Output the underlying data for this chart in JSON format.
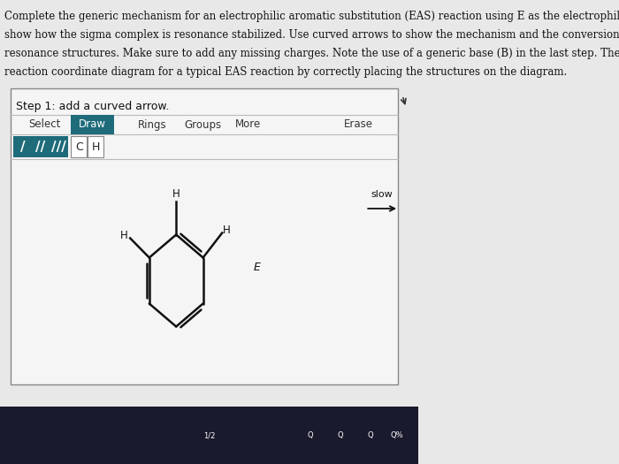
{
  "title_lines": [
    "Complete the generic mechanism for an electrophilic aromatic substitution (EAS) reaction using E as the electrophile, and",
    "show how the sigma complex is resonance stabilized. Use curved arrows to show the mechanism and the conversion between",
    "resonance structures. Make sure to add any missing charges. Note the use of a generic base (B) in the last step. Then, label the",
    "reaction coordinate diagram for a typical EAS reaction by correctly placing the structures on the diagram."
  ],
  "step_label": "Step 1: add a curved arrow.",
  "toolbar_items": [
    "Select",
    "Draw",
    "Rings",
    "Groups",
    "More",
    "Erase"
  ],
  "slow_label": "slow",
  "bg_color": "#e8e8e8",
  "panel_bg": "#f5f5f5",
  "panel_border": "#888888",
  "draw_btn_color": "#1e6b7a",
  "draw_btn_text_color": "#ffffff",
  "bond_btn_bg": "#1e6b7a",
  "bond_btn_text_color": "#ffffff",
  "ch_btn_bg": "#ffffff",
  "ch_btn_border": "#888888",
  "molecule_color": "#111111",
  "electrophile_label": "E",
  "bottom_bar_color": "#1a1a2e",
  "text_color": "#111111"
}
